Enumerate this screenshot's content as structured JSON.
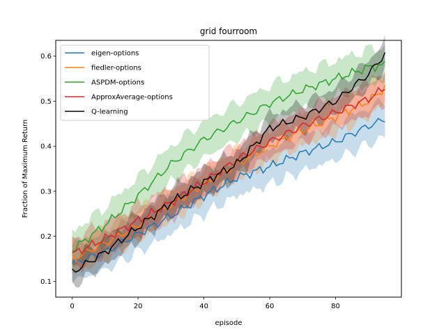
{
  "chart_data": {
    "type": "line",
    "title": "grid  fourroom",
    "xlabel": "episode",
    "ylabel": "Fraction of Maximum Return",
    "xlim": [
      -5,
      100
    ],
    "ylim": [
      0.065,
      0.635
    ],
    "xticks": [
      0,
      20,
      40,
      60,
      80
    ],
    "yticks": [
      0.1,
      0.2,
      0.3,
      0.4,
      0.5,
      0.6
    ],
    "grid": false,
    "legend_position": "upper-left",
    "series": [
      {
        "name": "eigen-options",
        "color": "#1f77b4",
        "anchors_x": [
          0,
          10,
          20,
          30,
          40,
          50,
          60,
          70,
          80,
          90,
          95
        ],
        "anchors_y": [
          0.14,
          0.165,
          0.205,
          0.245,
          0.29,
          0.33,
          0.355,
          0.385,
          0.41,
          0.445,
          0.46
        ],
        "band": 0.04
      },
      {
        "name": "fiedler-options",
        "color": "#ff7f0e",
        "anchors_x": [
          0,
          10,
          20,
          30,
          40,
          50,
          60,
          70,
          80,
          90,
          95
        ],
        "anchors_y": [
          0.15,
          0.185,
          0.225,
          0.27,
          0.315,
          0.36,
          0.4,
          0.435,
          0.465,
          0.5,
          0.53
        ],
        "band": 0.035
      },
      {
        "name": "ASPDM-options",
        "color": "#2ca02c",
        "anchors_x": [
          0,
          10,
          20,
          30,
          40,
          50,
          60,
          70,
          80,
          90,
          95
        ],
        "anchors_y": [
          0.17,
          0.225,
          0.29,
          0.36,
          0.415,
          0.455,
          0.495,
          0.525,
          0.55,
          0.575,
          0.58
        ],
        "band": 0.04
      },
      {
        "name": "ApproxAverage-options",
        "color": "#d62728",
        "anchors_x": [
          0,
          10,
          20,
          30,
          40,
          50,
          60,
          70,
          80,
          90,
          95
        ],
        "anchors_y": [
          0.16,
          0.195,
          0.235,
          0.275,
          0.32,
          0.37,
          0.41,
          0.445,
          0.475,
          0.505,
          0.53
        ],
        "band": 0.035
      },
      {
        "name": "Q-learning",
        "color": "#000000",
        "anchors_x": [
          0,
          10,
          20,
          30,
          40,
          50,
          60,
          70,
          80,
          90,
          95
        ],
        "anchors_y": [
          0.12,
          0.165,
          0.22,
          0.275,
          0.32,
          0.36,
          0.44,
          0.465,
          0.5,
          0.56,
          0.605
        ],
        "band": 0.03
      }
    ]
  }
}
